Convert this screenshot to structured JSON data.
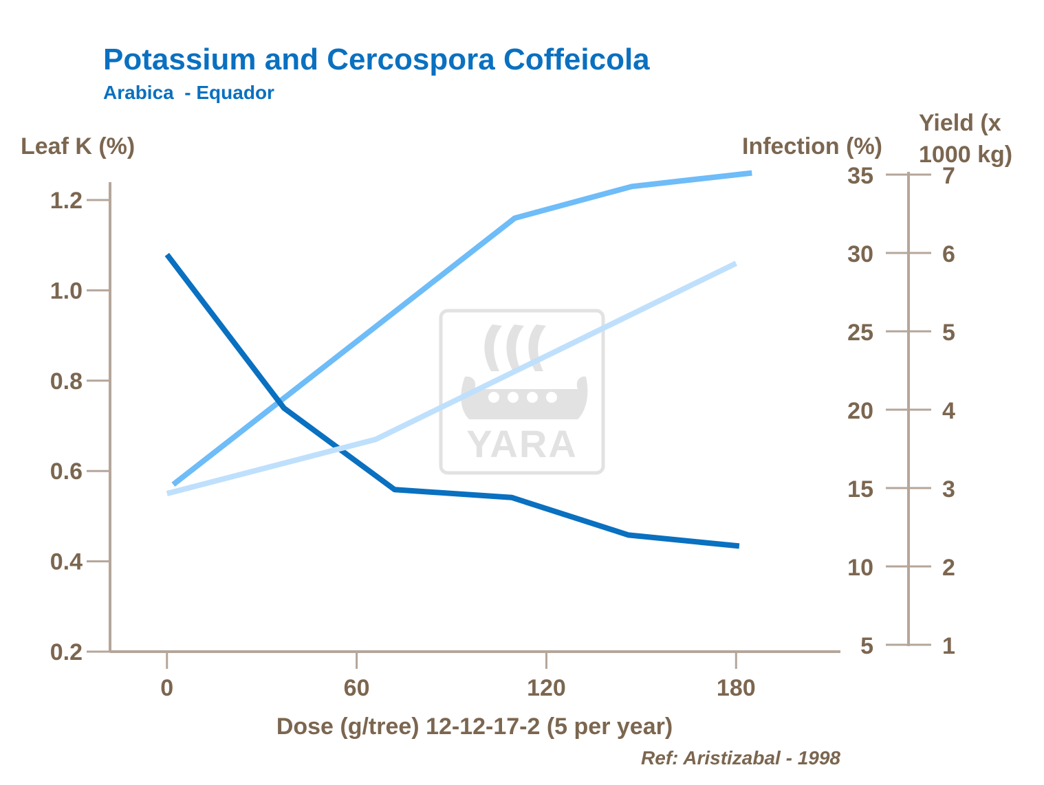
{
  "title": "Potassium and Cercospora Coffeicola",
  "subtitle": "Arabica  - Equador",
  "reference": "Ref: Aristizabal - 1998",
  "watermark": "YARA",
  "colors": {
    "title": "#0a70c0",
    "axis_text": "#7b6650",
    "axis_line": "#b5a69a",
    "leaf_k": "#6ebcf8",
    "infection": "#0a70c0",
    "yield": "#bfe0fc",
    "watermark": "#e2e2e2"
  },
  "chart_data": {
    "type": "line",
    "title": "Potassium and Cercospora Coffeicola",
    "subtitle": "Arabica  - Equador",
    "xlabel": "Dose (g/tree) 12-12-17-2 (5 per year)",
    "xlim": [
      -18,
      213
    ],
    "x_ticks": [
      0,
      60,
      120,
      180
    ],
    "x_tick_labels": [
      "0",
      "60",
      "120",
      "180"
    ],
    "y_left": {
      "label": "Leaf K (%)",
      "ylim": [
        0.2,
        1.2
      ],
      "ticks": [
        1.2,
        1.0,
        0.8,
        0.6,
        0.4,
        0.2
      ],
      "tick_labels": [
        "1.2",
        "1.0",
        "0.8",
        "0.6",
        "0.4",
        "0.2"
      ]
    },
    "y_right_infection": {
      "label": "Infection (%)",
      "ylim": [
        5,
        35
      ],
      "ticks": [
        35,
        30,
        25,
        20,
        15,
        10,
        5
      ],
      "tick_labels": [
        "35",
        "30",
        "25",
        "20",
        "15",
        "10",
        "5"
      ]
    },
    "y_right_yield": {
      "label": "Yield (x 1000 kg)",
      "label_lines": [
        "Yield (x",
        "1000 kg)"
      ],
      "ylim": [
        1,
        7
      ],
      "ticks": [
        7,
        6,
        5,
        4,
        3,
        2,
        1
      ],
      "tick_labels": [
        "7",
        "6",
        "5",
        "4",
        "3",
        "2",
        "1"
      ]
    },
    "series": [
      {
        "name": "Leaf K",
        "axis": "y_left",
        "color": "#6ebcf8",
        "x": [
          2,
          110,
          147,
          185
        ],
        "values": [
          0.57,
          1.16,
          1.23,
          1.26
        ]
      },
      {
        "name": "Infection",
        "axis": "y_right_infection",
        "color": "#0a70c0",
        "x": [
          0,
          37,
          72,
          109,
          146,
          181
        ],
        "values": [
          29.9,
          20.1,
          14.9,
          14.4,
          12.0,
          11.3
        ]
      },
      {
        "name": "Yield",
        "axis": "y_left",
        "color": "#bfe0fc",
        "x": [
          0,
          66,
          180
        ],
        "values": [
          0.55,
          0.67,
          1.06
        ]
      }
    ]
  }
}
